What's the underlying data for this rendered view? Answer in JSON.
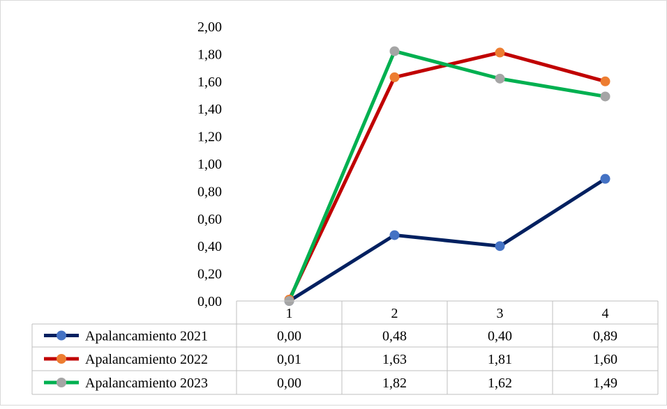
{
  "chart_data": {
    "type": "line",
    "title": "",
    "xlabel": "",
    "ylabel": "",
    "categories": [
      "1",
      "2",
      "3",
      "4"
    ],
    "ylim": [
      0,
      2
    ],
    "yticks": [
      "0,00",
      "0,20",
      "0,40",
      "0,60",
      "0,80",
      "1,00",
      "1,20",
      "1,40",
      "1,60",
      "1,80",
      "2,00"
    ],
    "grid": false,
    "legend": "data-table",
    "series": [
      {
        "name": "Apalancamiento 2021",
        "values": [
          0.0,
          0.48,
          0.4,
          0.89
        ],
        "labels": [
          "0,00",
          "0,48",
          "0,40",
          "0,89"
        ],
        "line_color": "#002060",
        "marker_color": "#4472C4"
      },
      {
        "name": "Apalancamiento 2022",
        "values": [
          0.01,
          1.63,
          1.81,
          1.6
        ],
        "labels": [
          "0,01",
          "1,63",
          "1,81",
          "1,60"
        ],
        "line_color": "#C00000",
        "marker_color": "#ED7D31"
      },
      {
        "name": "Apalancamiento 2023",
        "values": [
          0.0,
          1.82,
          1.62,
          1.49
        ],
        "labels": [
          "0,00",
          "1,82",
          "1,62",
          "1,49"
        ],
        "line_color": "#00B050",
        "marker_color": "#A5A5A5"
      }
    ]
  },
  "colors": {
    "border": "#D9D9D9",
    "table_border": "#BFBFBF",
    "text": "#000000"
  }
}
